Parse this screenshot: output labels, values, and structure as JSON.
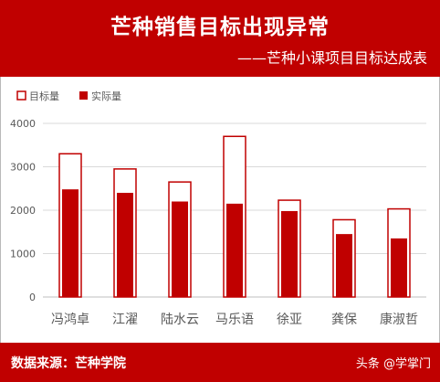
{
  "header": {
    "title": "芒种销售目标出现异常",
    "subtitle": "——芒种小课项目目标达成表"
  },
  "footer": {
    "source": "数据来源：芒种学院",
    "watermark": "头条 @学掌门"
  },
  "colors": {
    "brand": "#c00000",
    "target_fill": "#ffffff",
    "actual_fill": "#c00000",
    "grid": "#d9d9d9",
    "tick_text": "#595959"
  },
  "chart_data": {
    "type": "bar",
    "categories": [
      "冯鸿卓",
      "江濯",
      "陆水云",
      "马乐语",
      "徐亚",
      "龚保",
      "康淑哲"
    ],
    "series": [
      {
        "name": "目标量",
        "values": [
          3300,
          2950,
          2650,
          3700,
          2230,
          1780,
          2030
        ]
      },
      {
        "name": "实际量",
        "values": [
          2480,
          2400,
          2200,
          2150,
          1980,
          1450,
          1350
        ]
      }
    ],
    "ylim": [
      0,
      4000
    ],
    "yticks": [
      "0",
      "1000",
      "2000",
      "3000",
      "4000"
    ],
    "legend_position": "top-left",
    "grid": true,
    "xlabel": "",
    "ylabel": ""
  }
}
